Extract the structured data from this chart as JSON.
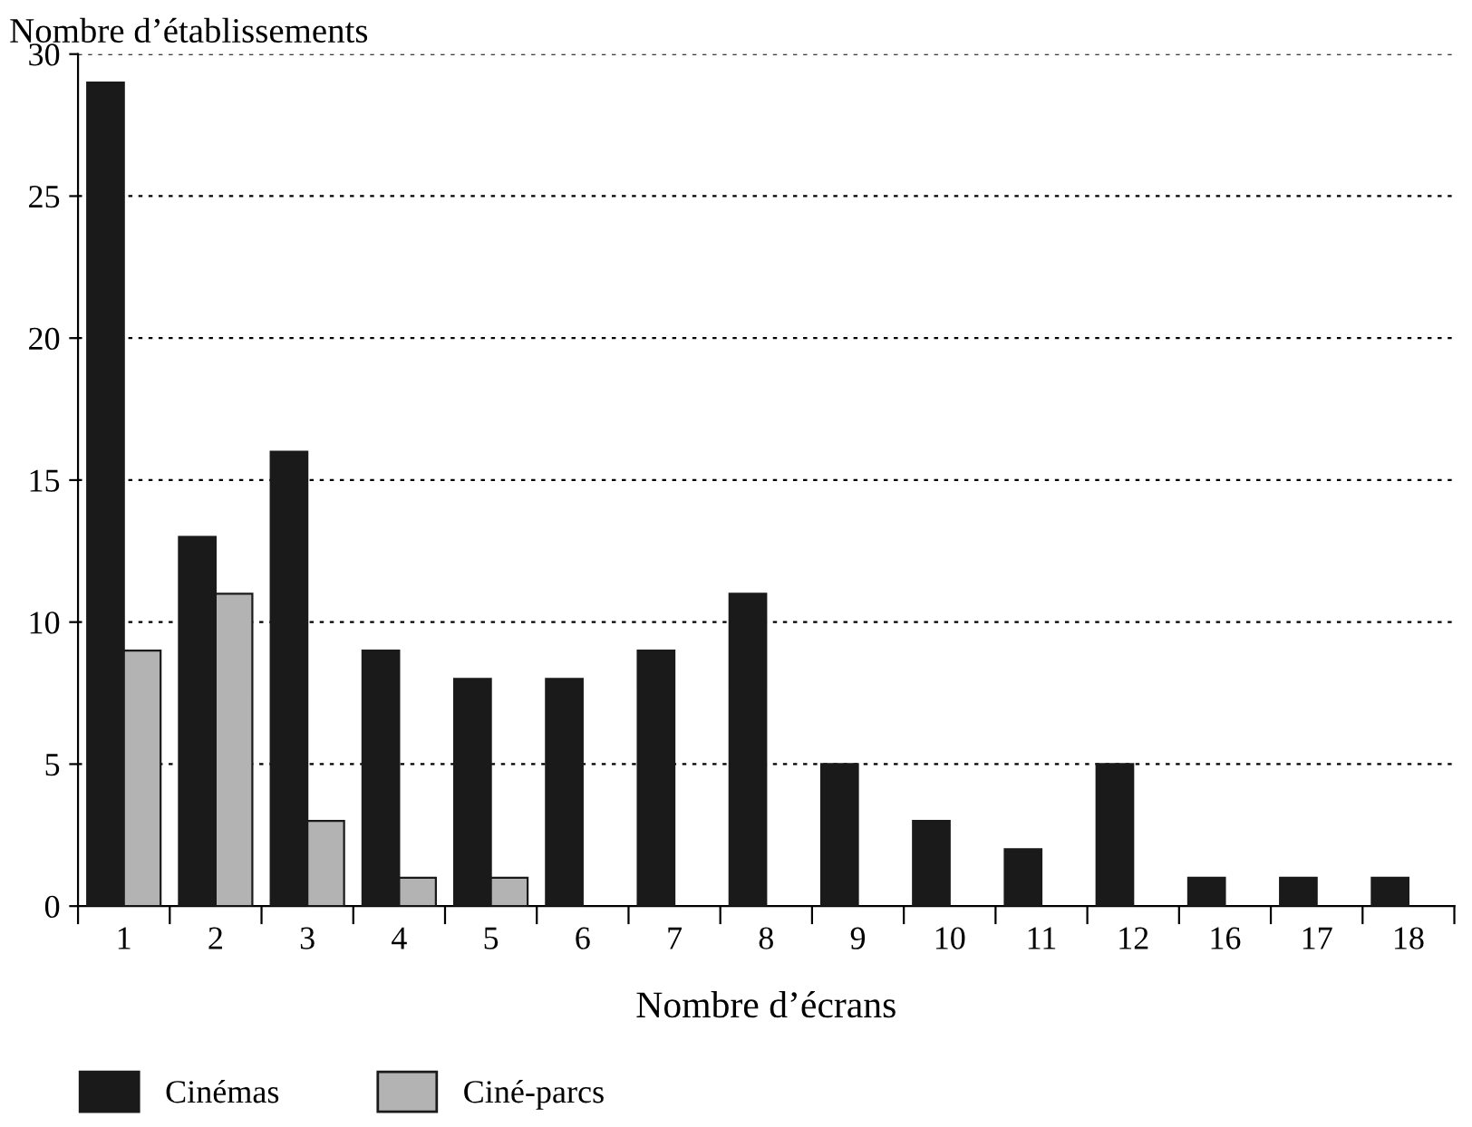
{
  "chart_data": {
    "type": "bar",
    "ylabel": "Nombre d’établissements",
    "xlabel": "Nombre d’écrans",
    "categories": [
      "1",
      "2",
      "3",
      "4",
      "5",
      "6",
      "7",
      "8",
      "9",
      "10",
      "11",
      "12",
      "16",
      "17",
      "18"
    ],
    "series": [
      {
        "name": "Cinémas",
        "color": "#1a1a1a",
        "values": [
          29,
          13,
          16,
          9,
          8,
          8,
          9,
          11,
          5,
          3,
          2,
          5,
          1,
          1,
          1
        ]
      },
      {
        "name": "Ciné-parcs",
        "color": "#b3b3b3",
        "values": [
          9,
          11,
          3,
          1,
          1,
          null,
          null,
          null,
          null,
          null,
          null,
          null,
          null,
          null,
          null
        ]
      }
    ],
    "ylim": [
      0,
      30
    ],
    "yticks": [
      0,
      5,
      10,
      15,
      20,
      25,
      30
    ],
    "grid": "y",
    "legend": "bottom left"
  }
}
